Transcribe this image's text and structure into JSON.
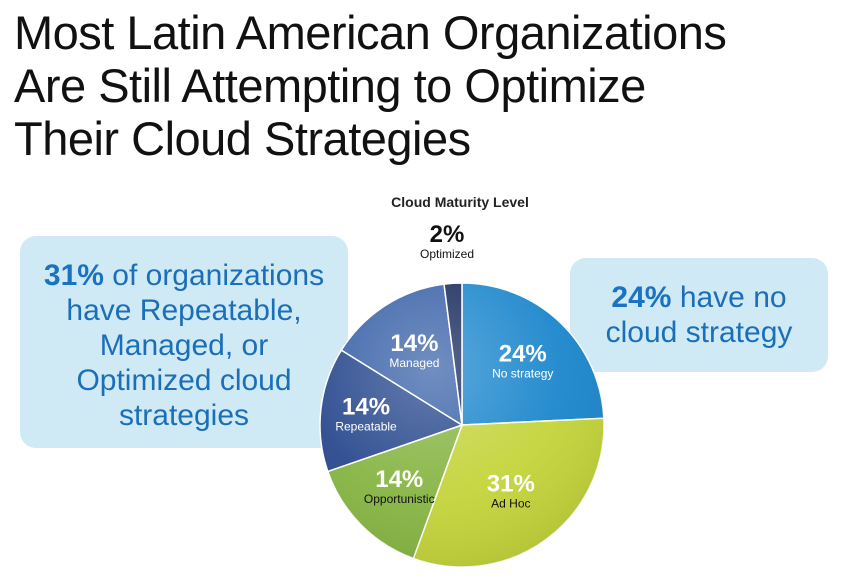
{
  "title": {
    "lines": [
      "Most Latin American Organizations",
      "Are Still Attempting to Optimize",
      "Their Cloud Strategies"
    ]
  },
  "callout_left": {
    "pct": "31%",
    "lines": [
      "of organizations",
      "have Repeatable,",
      "Managed, or",
      "Optimized cloud",
      "strategies"
    ]
  },
  "callout_right": {
    "pct": "24%",
    "lines": [
      "have no",
      "cloud strategy"
    ]
  },
  "colors": {
    "no_strategy": "#1b86cc",
    "ad_hoc": "#c3d43a",
    "opportunistic": "#86b543",
    "repeatable": "#2a4a8e",
    "managed": "#3a62a8",
    "optimized": "#182a5c",
    "callout_bg": "#cfe9f5",
    "callout_text": "#1b6fb8"
  },
  "chart_data": {
    "type": "pie",
    "title": "Cloud Maturity Level",
    "slices": [
      {
        "label": "No strategy",
        "value": 24,
        "pct_label": "24%",
        "color": "#1b86cc",
        "text_color": "#ffffff"
      },
      {
        "label": "Ad Hoc",
        "value": 31,
        "pct_label": "31%",
        "color": "#c3d43a",
        "text_color": "#ffffff"
      },
      {
        "label": "Opportunistic",
        "value": 14,
        "pct_label": "14%",
        "color": "#86b543",
        "text_color": "#ffffff"
      },
      {
        "label": "Repeatable",
        "value": 14,
        "pct_label": "14%",
        "color": "#2a4a8e",
        "text_color": "#ffffff"
      },
      {
        "label": "Managed",
        "value": 14,
        "pct_label": "14%",
        "color": "#3a62a8",
        "text_color": "#ffffff"
      },
      {
        "label": "Optimized",
        "value": 2,
        "pct_label": "2%",
        "color": "#182a5c",
        "text_color": "#111111"
      }
    ]
  }
}
